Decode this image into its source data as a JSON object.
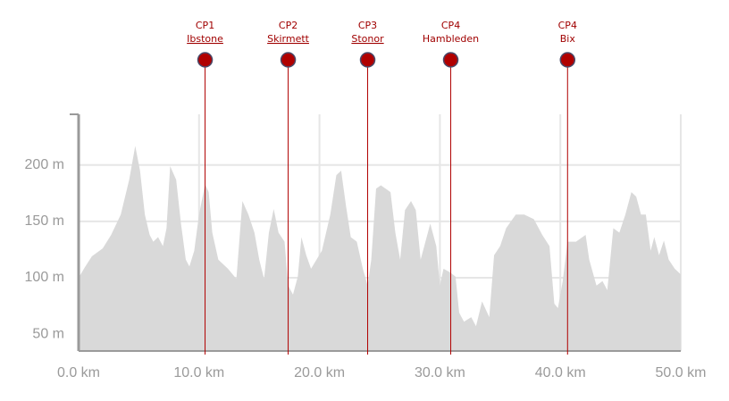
{
  "chart_data": {
    "type": "area",
    "x": [
      0,
      0.5,
      1.1,
      2.0,
      2.7,
      3.5,
      4.2,
      4.7,
      5.1,
      5.5,
      5.9,
      6.2,
      6.6,
      7.0,
      7.3,
      7.6,
      8.1,
      8.5,
      8.9,
      9.2,
      9.6,
      10.0,
      10.5,
      10.8,
      11.1,
      11.6,
      12.4,
      13.1,
      13.6,
      14.1,
      14.6,
      15.0,
      15.4,
      15.8,
      16.2,
      16.6,
      17.1,
      17.4,
      17.8,
      18.2,
      18.5,
      18.9,
      19.3,
      20.2,
      20.9,
      21.4,
      21.8,
      22.2,
      22.6,
      23.1,
      23.6,
      24.0,
      24.3,
      24.7,
      25.1,
      25.9,
      26.3,
      26.7,
      27.1,
      27.6,
      28.0,
      28.4,
      28.8,
      29.2,
      29.7,
      30.0,
      30.3,
      30.8,
      31.3,
      31.6,
      32.0,
      32.6,
      33.0,
      33.5,
      34.1,
      34.5,
      35.0,
      35.5,
      36.3,
      37.0,
      37.8,
      38.5,
      39.1,
      39.5,
      39.8,
      40.2,
      40.6,
      41.3,
      42.1,
      42.4,
      43.0,
      43.5,
      43.9,
      44.4,
      44.9,
      45.4,
      45.9,
      46.3,
      46.7,
      47.1,
      47.5,
      47.8,
      48.2,
      48.6,
      49.0,
      49.5,
      50.0
    ],
    "values": [
      100,
      109,
      119,
      126,
      138,
      156,
      187,
      217,
      195,
      156,
      138,
      132,
      136,
      128,
      144,
      199,
      187,
      148,
      116,
      110,
      124,
      156,
      183,
      176,
      140,
      116,
      108,
      99,
      168,
      156,
      140,
      116,
      99,
      140,
      161,
      140,
      132,
      93,
      85,
      101,
      136,
      120,
      108,
      124,
      156,
      191,
      195,
      164,
      136,
      132,
      108,
      93,
      116,
      179,
      182,
      176,
      140,
      116,
      160,
      168,
      160,
      116,
      132,
      148,
      128,
      93,
      108,
      105,
      101,
      69,
      61,
      65,
      57,
      79,
      65,
      120,
      128,
      144,
      156,
      156,
      152,
      138,
      128,
      77,
      73,
      97,
      132,
      132,
      138,
      116,
      93,
      97,
      89,
      144,
      140,
      156,
      176,
      172,
      156,
      156,
      124,
      136,
      120,
      133,
      116,
      108,
      103
    ],
    "color": "#d9d9d9",
    "xlim": [
      0,
      50
    ],
    "ylim": [
      35,
      245
    ],
    "xticks": [
      {
        "value": 0,
        "label": "0.0 km"
      },
      {
        "value": 10,
        "label": "10.0 km"
      },
      {
        "value": 20,
        "label": "20.0 km"
      },
      {
        "value": 30,
        "label": "30.0 km"
      },
      {
        "value": 40,
        "label": "40.0 km"
      },
      {
        "value": 50,
        "label": "50.0 km"
      }
    ],
    "yticks": [
      {
        "value": 50,
        "label": "50 m"
      },
      {
        "value": 100,
        "label": "100 m"
      },
      {
        "value": 150,
        "label": "150 m"
      },
      {
        "value": 200,
        "label": "200 m"
      }
    ],
    "grid": true,
    "checkpoints": [
      {
        "label": "CP1",
        "name": "Ibstone",
        "km": 10.5
      },
      {
        "label": "CP2",
        "name": "Skirmett",
        "km": 17.4
      },
      {
        "label": "CP3",
        "name": "Stonor",
        "km": 24.0
      },
      {
        "label": "CP4",
        "name": "Hambleden",
        "km": 30.9
      },
      {
        "label": "CP4",
        "name": "Bix",
        "km": 40.6
      }
    ],
    "checkpoint_color": "#b00000"
  }
}
